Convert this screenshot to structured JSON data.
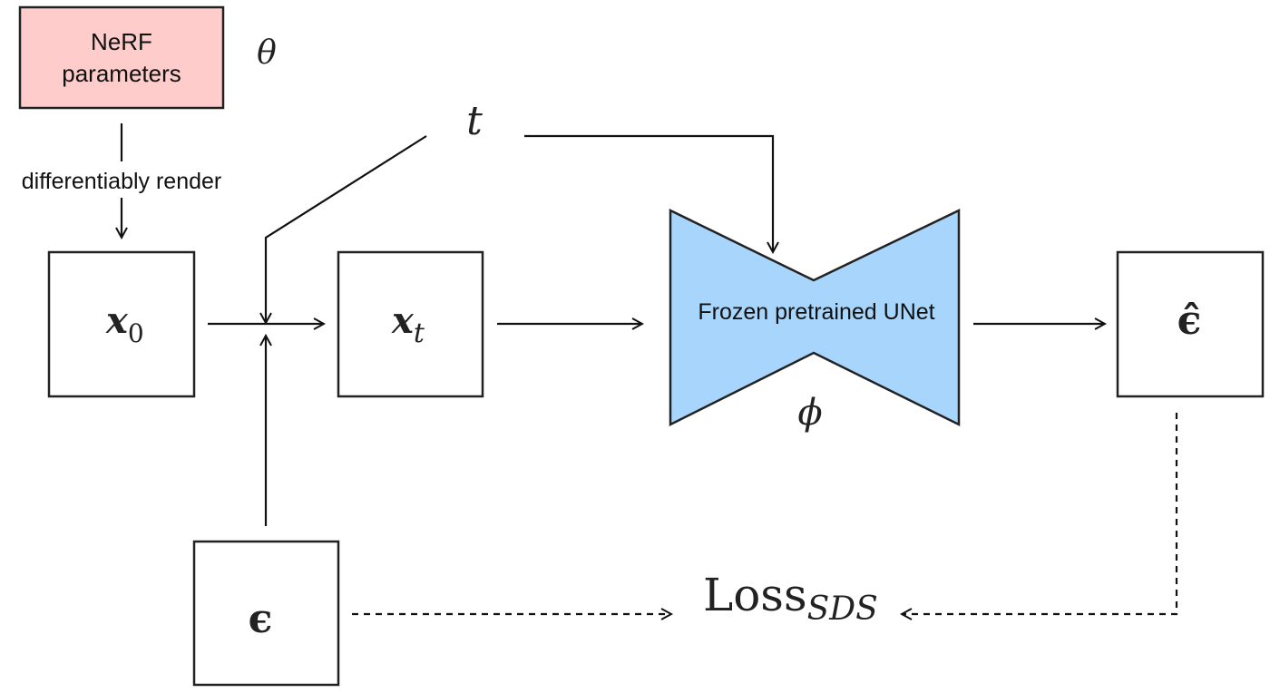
{
  "nerf": {
    "line1": "NeRF",
    "line2": "parameters",
    "theta": "θ",
    "fill": "#fdcccb"
  },
  "render_label": "differentiably render",
  "time_symbol": "t",
  "x0": {
    "base": "x",
    "sub": "0"
  },
  "xt": {
    "base": "x",
    "sub": "t"
  },
  "unet": {
    "label": "Frozen pretrained UNet",
    "phi": "ϕ",
    "fill": "#a7d5fb"
  },
  "eps_hat": "ϵ̂",
  "eps": "ϵ",
  "loss": {
    "base": "Loss",
    "sub": "SDS"
  }
}
